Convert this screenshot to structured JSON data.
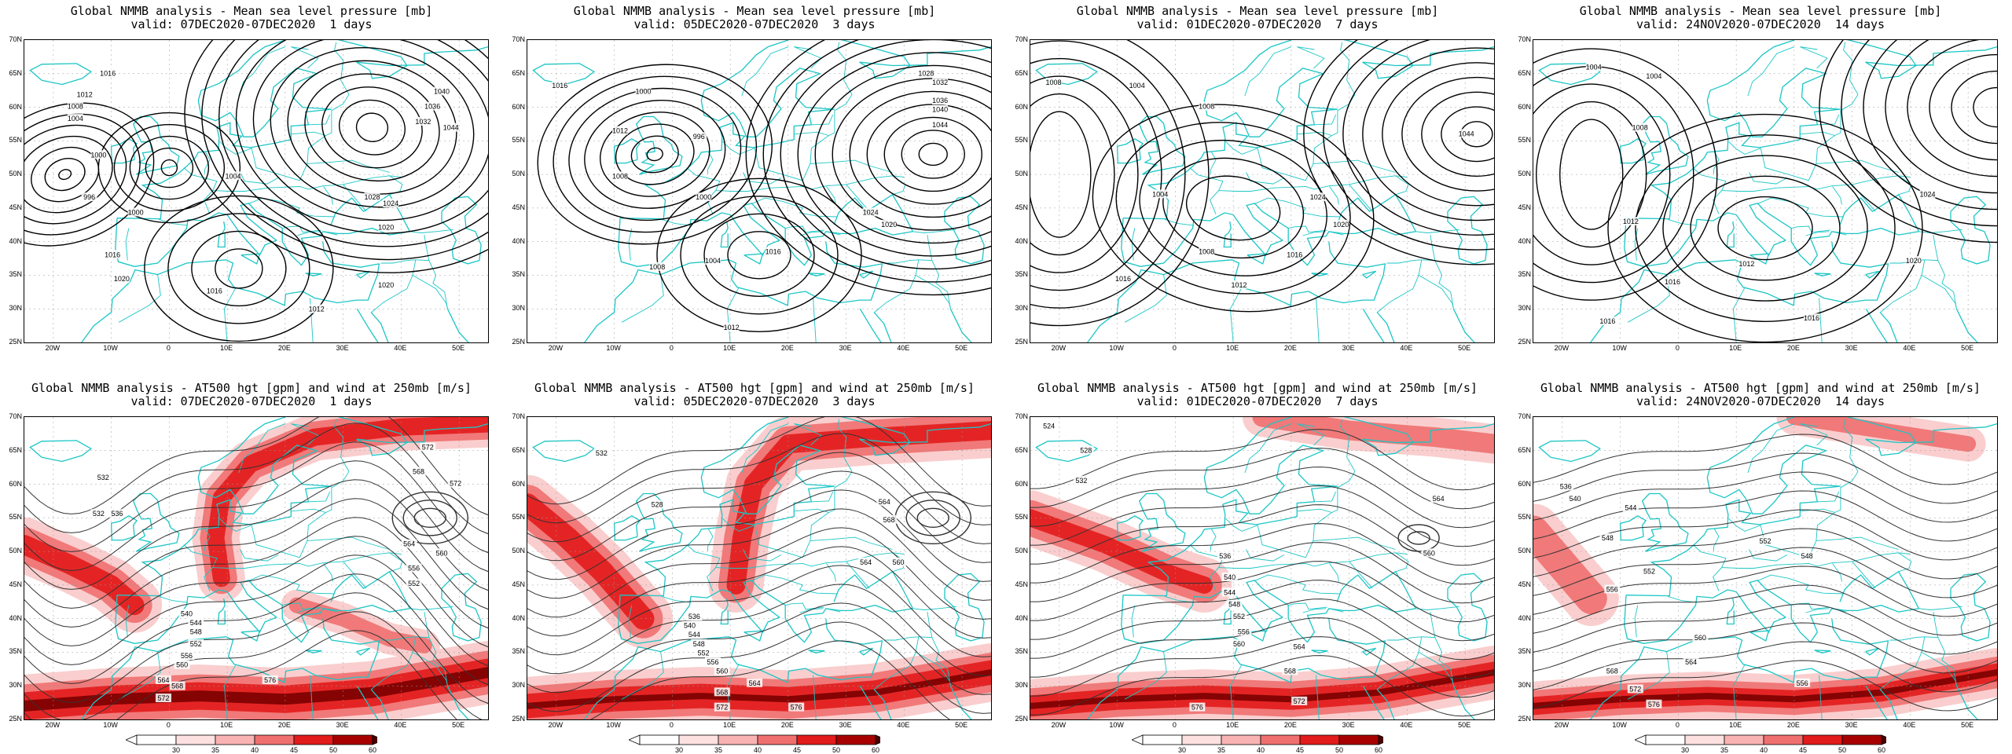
{
  "panels": [
    {
      "title1": "Global NMMB analysis - Mean sea level pressure [mb]",
      "title2": "valid: 07DEC2020-07DEC2020  1 days",
      "type": "mslp"
    },
    {
      "title1": "Global NMMB analysis - Mean sea level pressure [mb]",
      "title2": "valid: 05DEC2020-07DEC2020  3 days",
      "type": "mslp"
    },
    {
      "title1": "Global NMMB analysis - Mean sea level pressure [mb]",
      "title2": "valid: 01DEC2020-07DEC2020  7 days",
      "type": "mslp"
    },
    {
      "title1": "Global NMMB analysis - Mean sea level pressure [mb]",
      "title2": "valid: 24NOV2020-07DEC2020  14 days",
      "type": "mslp"
    },
    {
      "title1": "Global NMMB analysis - AT500 hgt [gpm] and wind at 250mb [m/s]",
      "title2": "valid: 07DEC2020-07DEC2020  1 days",
      "type": "z500"
    },
    {
      "title1": "Global NMMB analysis - AT500 hgt [gpm] and wind at 250mb [m/s]",
      "title2": "valid: 05DEC2020-07DEC2020  3 days",
      "type": "z500"
    },
    {
      "title1": "Global NMMB analysis - AT500 hgt [gpm] and wind at 250mb [m/s]",
      "title2": "valid: 01DEC2020-07DEC2020  7 days",
      "type": "z500"
    },
    {
      "title1": "Global NMMB analysis - AT500 hgt [gpm] and wind at 250mb [m/s]",
      "title2": "valid: 24NOV2020-07DEC2020  14 days",
      "type": "z500"
    }
  ],
  "lat_labels": [
    "70N",
    "65N",
    "60N",
    "55N",
    "50N",
    "45N",
    "40N",
    "35N",
    "30N",
    "25N"
  ],
  "lon_labels": [
    "20W",
    "10W",
    "0",
    "10E",
    "20E",
    "30E",
    "40E",
    "50E"
  ],
  "colorbar_labels": [
    "30",
    "35",
    "40",
    "45",
    "50",
    "60"
  ],
  "colors": {
    "coast": "#1cc6c6",
    "contour": "#000000",
    "wind_light": "#f9c9c9",
    "wind_mid": "#f07070",
    "wind_strong": "#e21b1b",
    "wind_max": "#7a0000"
  },
  "mslp_labels": [
    [
      "1016",
      "1012",
      "1008",
      "1004",
      "1000",
      "996",
      "1000",
      "1004",
      "1016",
      "1020",
      "1016",
      "1012",
      "1020",
      "1028",
      "1024",
      "1032",
      "1036",
      "1040",
      "1044",
      "1020"
    ],
    [
      "1016",
      "1012",
      "1008",
      "1000",
      "996",
      "1000",
      "1004",
      "1008",
      "1016",
      "1020",
      "1024",
      "1028",
      "1032",
      "1036",
      "1040",
      "1044",
      "1012"
    ],
    [
      "1008",
      "1004",
      "1008",
      "1004",
      "1008",
      "1012",
      "1016",
      "1020",
      "1024",
      "1044",
      "1016"
    ],
    [
      "1004",
      "1004",
      "1008",
      "1012",
      "1016",
      "1020",
      "1024",
      "1016",
      "1012",
      "1016"
    ]
  ],
  "z500_labels": [
    [
      "532",
      "536",
      "532",
      "540",
      "544",
      "548",
      "552",
      "556",
      "560",
      "564",
      "568",
      "572",
      "576",
      "572",
      "564",
      "560",
      "556",
      "552",
      "568",
      "572"
    ],
    [
      "532",
      "528",
      "536",
      "540",
      "544",
      "548",
      "552",
      "556",
      "560",
      "564",
      "568",
      "572",
      "576",
      "564",
      "568",
      "560",
      "564"
    ],
    [
      "524",
      "528",
      "532",
      "536",
      "540",
      "544",
      "548",
      "552",
      "556",
      "560",
      "564",
      "568",
      "572",
      "576",
      "564",
      "560"
    ],
    [
      "536",
      "540",
      "544",
      "548",
      "552",
      "556",
      "560",
      "564",
      "568",
      "572",
      "576",
      "556",
      "552",
      "548"
    ]
  ]
}
